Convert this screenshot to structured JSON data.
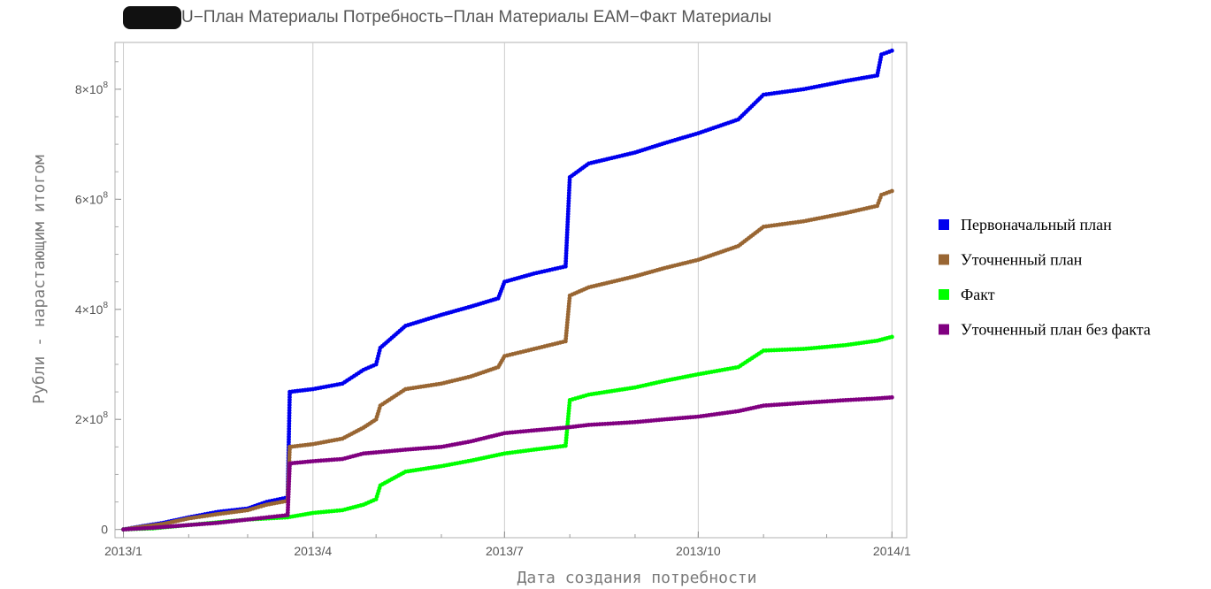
{
  "chart_data": {
    "type": "scatter",
    "title_prefix_redacted": true,
    "title": "U−План Материалы Потребность−План Материалы ЕАМ−Факт Материалы",
    "xlabel": "Дата создания потребности",
    "ylabel": "Рубли - нарастающим итогом",
    "x_ticks": [
      {
        "value": "2013-01-01",
        "label": "2013/1"
      },
      {
        "value": "2013-04-01",
        "label": "2013/4"
      },
      {
        "value": "2013-07-01",
        "label": "2013/7"
      },
      {
        "value": "2013-10-01",
        "label": "2013/10"
      },
      {
        "value": "2014-01-01",
        "label": "2014/1"
      }
    ],
    "y_ticks": [
      {
        "value": 0,
        "mantissa": "0",
        "exp": ""
      },
      {
        "value": 200000000,
        "mantissa": "2×10",
        "exp": "8"
      },
      {
        "value": 400000000,
        "mantissa": "4×10",
        "exp": "8"
      },
      {
        "value": 600000000,
        "mantissa": "6×10",
        "exp": "8"
      },
      {
        "value": 800000000,
        "mantissa": "8×10",
        "exp": "8"
      }
    ],
    "xlim": [
      "2012-12-28",
      "2014-01-08"
    ],
    "ylim": [
      -15000000,
      885000000
    ],
    "grid": "vertical",
    "legend_position": "right",
    "series": [
      {
        "name": "Первоначальный план",
        "color": "#0000ee",
        "points": [
          [
            "2013-01-01",
            0
          ],
          [
            "2013-01-10",
            6000000
          ],
          [
            "2013-01-20",
            12000000
          ],
          [
            "2013-02-01",
            22000000
          ],
          [
            "2013-02-15",
            32000000
          ],
          [
            "2013-03-01",
            38000000
          ],
          [
            "2013-03-10",
            50000000
          ],
          [
            "2013-03-20",
            58000000
          ],
          [
            "2013-03-21",
            250000000
          ],
          [
            "2013-04-01",
            255000000
          ],
          [
            "2013-04-15",
            265000000
          ],
          [
            "2013-04-25",
            290000000
          ],
          [
            "2013-05-01",
            300000000
          ],
          [
            "2013-05-03",
            330000000
          ],
          [
            "2013-05-15",
            370000000
          ],
          [
            "2013-06-01",
            390000000
          ],
          [
            "2013-06-15",
            405000000
          ],
          [
            "2013-06-28",
            420000000
          ],
          [
            "2013-07-01",
            450000000
          ],
          [
            "2013-07-15",
            465000000
          ],
          [
            "2013-07-30",
            478000000
          ],
          [
            "2013-08-01",
            640000000
          ],
          [
            "2013-08-10",
            665000000
          ],
          [
            "2013-09-01",
            685000000
          ],
          [
            "2013-09-15",
            702000000
          ],
          [
            "2013-10-01",
            720000000
          ],
          [
            "2013-10-20",
            745000000
          ],
          [
            "2013-11-01",
            790000000
          ],
          [
            "2013-11-20",
            800000000
          ],
          [
            "2013-12-10",
            815000000
          ],
          [
            "2013-12-25",
            825000000
          ],
          [
            "2013-12-27",
            863000000
          ],
          [
            "2014-01-01",
            870000000
          ]
        ]
      },
      {
        "name": "Уточненный план",
        "color": "#996633",
        "points": [
          [
            "2013-01-01",
            0
          ],
          [
            "2013-01-10",
            5000000
          ],
          [
            "2013-01-20",
            10000000
          ],
          [
            "2013-02-01",
            20000000
          ],
          [
            "2013-02-15",
            28000000
          ],
          [
            "2013-03-01",
            35000000
          ],
          [
            "2013-03-10",
            45000000
          ],
          [
            "2013-03-20",
            52000000
          ],
          [
            "2013-03-21",
            150000000
          ],
          [
            "2013-04-01",
            155000000
          ],
          [
            "2013-04-15",
            165000000
          ],
          [
            "2013-04-25",
            185000000
          ],
          [
            "2013-05-01",
            200000000
          ],
          [
            "2013-05-03",
            225000000
          ],
          [
            "2013-05-15",
            255000000
          ],
          [
            "2013-06-01",
            265000000
          ],
          [
            "2013-06-15",
            278000000
          ],
          [
            "2013-06-28",
            295000000
          ],
          [
            "2013-07-01",
            315000000
          ],
          [
            "2013-07-15",
            328000000
          ],
          [
            "2013-07-30",
            342000000
          ],
          [
            "2013-08-01",
            425000000
          ],
          [
            "2013-08-10",
            440000000
          ],
          [
            "2013-09-01",
            460000000
          ],
          [
            "2013-09-15",
            475000000
          ],
          [
            "2013-10-01",
            490000000
          ],
          [
            "2013-10-20",
            515000000
          ],
          [
            "2013-11-01",
            550000000
          ],
          [
            "2013-11-20",
            560000000
          ],
          [
            "2013-12-10",
            575000000
          ],
          [
            "2013-12-25",
            588000000
          ],
          [
            "2013-12-27",
            608000000
          ],
          [
            "2014-01-01",
            615000000
          ]
        ]
      },
      {
        "name": "Факт",
        "color": "#00ff00",
        "points": [
          [
            "2013-01-01",
            0
          ],
          [
            "2013-01-15",
            2000000
          ],
          [
            "2013-02-01",
            8000000
          ],
          [
            "2013-02-15",
            13000000
          ],
          [
            "2013-03-01",
            18000000
          ],
          [
            "2013-03-20",
            22000000
          ],
          [
            "2013-04-01",
            30000000
          ],
          [
            "2013-04-15",
            35000000
          ],
          [
            "2013-04-25",
            45000000
          ],
          [
            "2013-05-01",
            55000000
          ],
          [
            "2013-05-03",
            80000000
          ],
          [
            "2013-05-15",
            105000000
          ],
          [
            "2013-06-01",
            115000000
          ],
          [
            "2013-06-15",
            125000000
          ],
          [
            "2013-07-01",
            138000000
          ],
          [
            "2013-07-15",
            145000000
          ],
          [
            "2013-07-30",
            152000000
          ],
          [
            "2013-08-01",
            235000000
          ],
          [
            "2013-08-10",
            245000000
          ],
          [
            "2013-09-01",
            258000000
          ],
          [
            "2013-09-15",
            270000000
          ],
          [
            "2013-10-01",
            282000000
          ],
          [
            "2013-10-20",
            295000000
          ],
          [
            "2013-11-01",
            325000000
          ],
          [
            "2013-11-20",
            328000000
          ],
          [
            "2013-12-10",
            335000000
          ],
          [
            "2013-12-25",
            343000000
          ],
          [
            "2014-01-01",
            350000000
          ]
        ]
      },
      {
        "name": "Уточненный план без факта",
        "color": "#800080",
        "points": [
          [
            "2013-01-01",
            0
          ],
          [
            "2013-01-15",
            3000000
          ],
          [
            "2013-02-01",
            8000000
          ],
          [
            "2013-02-15",
            12000000
          ],
          [
            "2013-03-01",
            18000000
          ],
          [
            "2013-03-20",
            26000000
          ],
          [
            "2013-03-21",
            120000000
          ],
          [
            "2013-04-01",
            124000000
          ],
          [
            "2013-04-15",
            128000000
          ],
          [
            "2013-04-25",
            138000000
          ],
          [
            "2013-05-01",
            140000000
          ],
          [
            "2013-05-15",
            145000000
          ],
          [
            "2013-06-01",
            150000000
          ],
          [
            "2013-06-15",
            160000000
          ],
          [
            "2013-07-01",
            175000000
          ],
          [
            "2013-07-15",
            180000000
          ],
          [
            "2013-07-30",
            185000000
          ],
          [
            "2013-08-10",
            190000000
          ],
          [
            "2013-09-01",
            195000000
          ],
          [
            "2013-09-15",
            200000000
          ],
          [
            "2013-10-01",
            205000000
          ],
          [
            "2013-10-20",
            215000000
          ],
          [
            "2013-11-01",
            225000000
          ],
          [
            "2013-11-20",
            230000000
          ],
          [
            "2013-12-10",
            235000000
          ],
          [
            "2013-12-25",
            238000000
          ],
          [
            "2014-01-01",
            240000000
          ]
        ]
      }
    ]
  }
}
